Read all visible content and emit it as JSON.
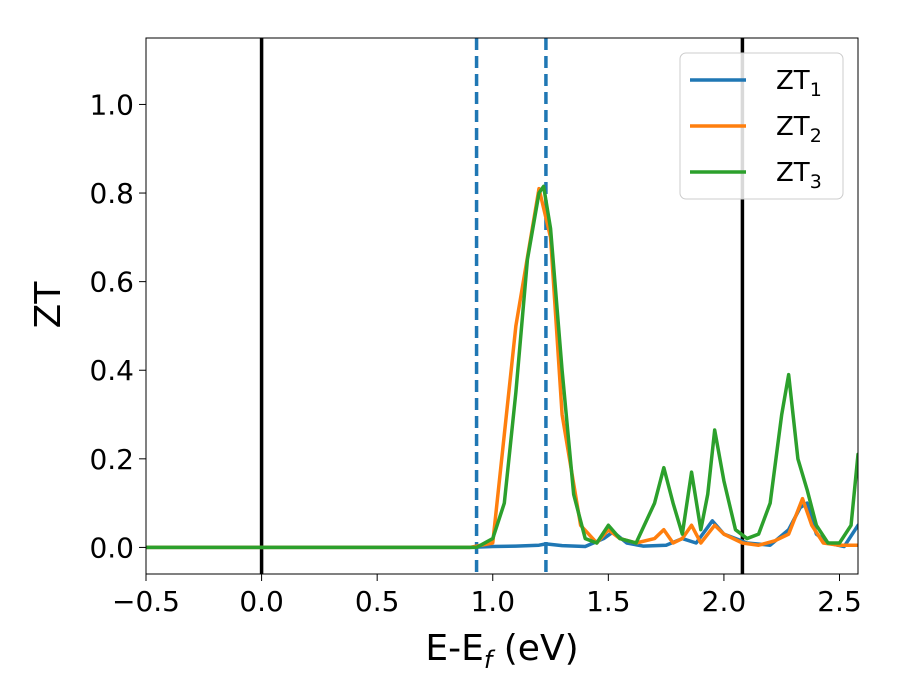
{
  "chart_data": {
    "type": "line",
    "xlabel": "E-E",
    "xlabel_sub": "f",
    "xlabel_unit": " (eV)",
    "ylabel": "ZT",
    "xlim": [
      -0.5,
      2.58
    ],
    "ylim": [
      -0.06,
      1.15
    ],
    "xticks": [
      -0.5,
      0.0,
      0.5,
      1.0,
      1.5,
      2.0,
      2.5
    ],
    "xtick_labels": [
      "−0.5",
      "0.0",
      "0.5",
      "1.0",
      "1.5",
      "2.0",
      "2.5"
    ],
    "yticks": [
      0.0,
      0.2,
      0.4,
      0.6,
      0.8,
      1.0
    ],
    "ytick_labels": [
      "0.0",
      "0.2",
      "0.4",
      "0.6",
      "0.8",
      "1.0"
    ],
    "grid": false,
    "legend_position": "top-right",
    "vlines": [
      {
        "x": 0.0,
        "style": "solid",
        "color": "#000000"
      },
      {
        "x": 2.08,
        "style": "solid",
        "color": "#000000"
      },
      {
        "x": 0.93,
        "style": "dashed",
        "color": "#1f77b4"
      },
      {
        "x": 1.23,
        "style": "dashed",
        "color": "#1f77b4"
      }
    ],
    "series": [
      {
        "name": "ZT",
        "name_sub": "1",
        "color": "#1f77b4",
        "points": [
          [
            -0.5,
            0
          ],
          [
            0.9,
            0
          ],
          [
            1.0,
            0.002
          ],
          [
            1.1,
            0.003
          ],
          [
            1.2,
            0.005
          ],
          [
            1.23,
            0.008
          ],
          [
            1.3,
            0.004
          ],
          [
            1.4,
            0.002
          ],
          [
            1.48,
            0.02
          ],
          [
            1.52,
            0.035
          ],
          [
            1.58,
            0.01
          ],
          [
            1.65,
            0.003
          ],
          [
            1.75,
            0.005
          ],
          [
            1.82,
            0.02
          ],
          [
            1.88,
            0.01
          ],
          [
            1.95,
            0.06
          ],
          [
            2.0,
            0.03
          ],
          [
            2.05,
            0.02
          ],
          [
            2.1,
            0.01
          ],
          [
            2.2,
            0.005
          ],
          [
            2.28,
            0.04
          ],
          [
            2.33,
            0.09
          ],
          [
            2.36,
            0.1
          ],
          [
            2.4,
            0.03
          ],
          [
            2.45,
            0.01
          ],
          [
            2.52,
            0.002
          ],
          [
            2.58,
            0.05
          ]
        ]
      },
      {
        "name": "ZT",
        "name_sub": "2",
        "color": "#ff7f0e",
        "points": [
          [
            -0.5,
            0
          ],
          [
            0.9,
            0
          ],
          [
            1.0,
            0.01
          ],
          [
            1.1,
            0.5
          ],
          [
            1.2,
            0.81
          ],
          [
            1.25,
            0.7
          ],
          [
            1.3,
            0.3
          ],
          [
            1.38,
            0.05
          ],
          [
            1.45,
            0.01
          ],
          [
            1.5,
            0.04
          ],
          [
            1.55,
            0.02
          ],
          [
            1.62,
            0.01
          ],
          [
            1.7,
            0.02
          ],
          [
            1.74,
            0.04
          ],
          [
            1.78,
            0.01
          ],
          [
            1.82,
            0.02
          ],
          [
            1.86,
            0.05
          ],
          [
            1.9,
            0.01
          ],
          [
            1.96,
            0.05
          ],
          [
            2.0,
            0.03
          ],
          [
            2.08,
            0.01
          ],
          [
            2.15,
            0.005
          ],
          [
            2.22,
            0.015
          ],
          [
            2.28,
            0.03
          ],
          [
            2.34,
            0.11
          ],
          [
            2.38,
            0.05
          ],
          [
            2.43,
            0.01
          ],
          [
            2.5,
            0.005
          ],
          [
            2.58,
            0.005
          ]
        ]
      },
      {
        "name": "ZT",
        "name_sub": "3",
        "color": "#2ca02c",
        "points": [
          [
            -0.5,
            0
          ],
          [
            0.93,
            0
          ],
          [
            1.0,
            0.02
          ],
          [
            1.05,
            0.1
          ],
          [
            1.1,
            0.35
          ],
          [
            1.15,
            0.65
          ],
          [
            1.2,
            0.8
          ],
          [
            1.22,
            0.815
          ],
          [
            1.25,
            0.72
          ],
          [
            1.3,
            0.4
          ],
          [
            1.35,
            0.12
          ],
          [
            1.4,
            0.02
          ],
          [
            1.45,
            0.01
          ],
          [
            1.5,
            0.05
          ],
          [
            1.55,
            0.02
          ],
          [
            1.62,
            0.01
          ],
          [
            1.7,
            0.1
          ],
          [
            1.74,
            0.18
          ],
          [
            1.78,
            0.1
          ],
          [
            1.82,
            0.03
          ],
          [
            1.86,
            0.17
          ],
          [
            1.9,
            0.04
          ],
          [
            1.93,
            0.12
          ],
          [
            1.96,
            0.265
          ],
          [
            2.0,
            0.15
          ],
          [
            2.05,
            0.04
          ],
          [
            2.1,
            0.02
          ],
          [
            2.15,
            0.03
          ],
          [
            2.2,
            0.1
          ],
          [
            2.25,
            0.3
          ],
          [
            2.28,
            0.39
          ],
          [
            2.32,
            0.2
          ],
          [
            2.36,
            0.13
          ],
          [
            2.4,
            0.05
          ],
          [
            2.45,
            0.01
          ],
          [
            2.5,
            0.01
          ],
          [
            2.55,
            0.05
          ],
          [
            2.58,
            0.21
          ]
        ]
      }
    ]
  }
}
